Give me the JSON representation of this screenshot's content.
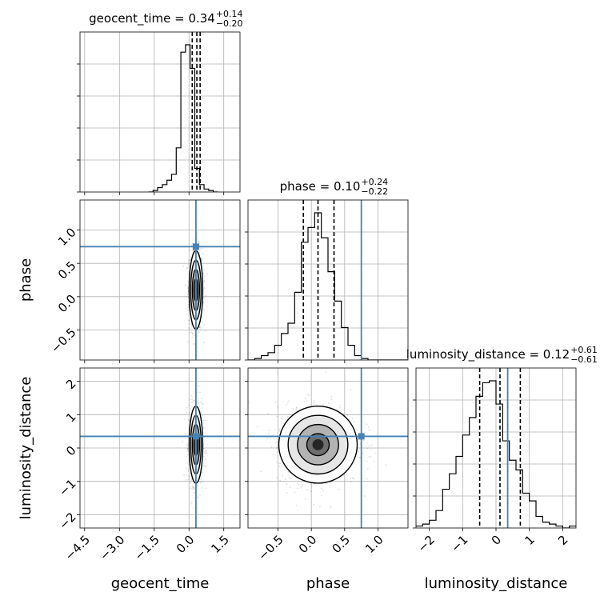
{
  "chart_data": {
    "type": "corner",
    "parameters": [
      "geocent_time",
      "phase",
      "luminosity_distance"
    ],
    "titles": [
      {
        "text": "geocent_time = 0.34",
        "plus": "+0.14",
        "minus": "−0.20"
      },
      {
        "text": "phase = 0.10",
        "plus": "+0.24",
        "minus": "−0.22"
      },
      {
        "text": "luminosity_distance = 0.12",
        "plus": "+0.61",
        "minus": "−0.61"
      }
    ],
    "xlabels": [
      "geocent_time",
      "phase",
      "luminosity_distance"
    ],
    "ylabels": [
      "",
      "phase",
      "luminosity_distance"
    ],
    "ranges": [
      [
        -4.7,
        2.2
      ],
      [
        -0.95,
        1.45
      ],
      [
        -2.4,
        2.4
      ]
    ],
    "ticks": [
      {
        "values": [
          -4.5,
          -3.0,
          -1.5,
          0.0,
          1.5
        ],
        "labels": [
          "−4.5",
          "−3.0",
          "−1.5",
          "0.0",
          "1.5"
        ]
      },
      {
        "values": [
          -0.5,
          0.0,
          0.5,
          1.0
        ],
        "labels": [
          "−0.5",
          "0.0",
          "0.5",
          "1.0"
        ]
      },
      {
        "values": [
          -2,
          -1,
          0,
          1,
          2
        ],
        "labels": [
          "−2",
          "−1",
          "0",
          "1",
          "2"
        ]
      }
    ],
    "quantiles": [
      [
        0.14,
        0.34,
        0.48
      ],
      [
        -0.12,
        0.1,
        0.34
      ],
      [
        -0.49,
        0.12,
        0.73
      ]
    ],
    "truths": [
      0.3,
      0.75,
      0.35
    ],
    "truth_color": "#4682b4",
    "hist_bins": [
      {
        "edges_start": -1.75,
        "width": 0.2,
        "counts": [
          0,
          1,
          3,
          5,
          8,
          12,
          30,
          95,
          100,
          84,
          16,
          5,
          2,
          1,
          0
        ]
      },
      {
        "edges_start": -0.95,
        "width": 0.1,
        "counts": [
          0,
          1,
          3,
          5,
          10,
          18,
          25,
          46,
          80,
          90,
          100,
          83,
          60,
          40,
          22,
          10,
          3,
          1,
          0,
          0,
          0,
          0,
          0,
          0
        ]
      },
      {
        "edges_start": -2.4,
        "width": 0.2,
        "counts": [
          1,
          2,
          4,
          9,
          20,
          28,
          37,
          48,
          57,
          68,
          75,
          76,
          64,
          45,
          35,
          30,
          18,
          14,
          6,
          3,
          2,
          1,
          0,
          1
        ]
      }
    ],
    "grid": true,
    "legend": "none"
  }
}
